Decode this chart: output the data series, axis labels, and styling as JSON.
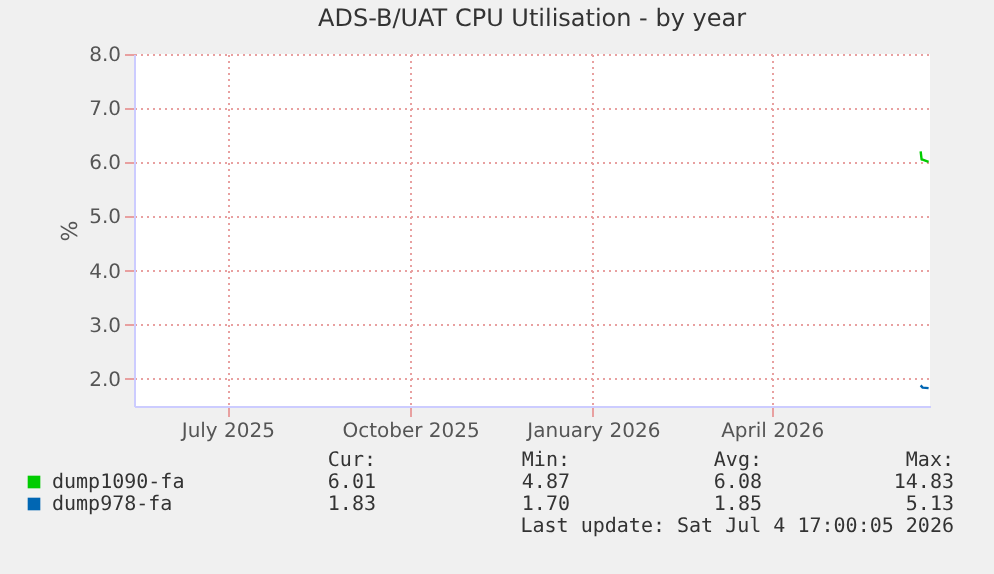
{
  "chart_data": {
    "type": "line",
    "title": "ADS-B/UAT CPU Utilisation - by year",
    "ylabel": "%",
    "series": [
      {
        "name": "dump1090-fa",
        "color": "#00cc00",
        "x": [
          "2026-06-30",
          "2026-06-30T12:00",
          "2026-07-01",
          "2026-07-04"
        ],
        "values": [
          6.2,
          6.05,
          6.05,
          6.01
        ]
      },
      {
        "name": "dump978-fa",
        "color": "#0066b3",
        "x": [
          "2026-06-30",
          "2026-07-01",
          "2026-07-04"
        ],
        "values": [
          1.88,
          1.84,
          1.83
        ]
      }
    ],
    "xlim": [
      "2025-05-30",
      "2026-07-04T17:00"
    ],
    "xticks": [
      {
        "value": "2025-07-16",
        "label": "July 2025"
      },
      {
        "value": "2025-10-16",
        "label": "October 2025"
      },
      {
        "value": "2026-01-16",
        "label": "January 2026"
      },
      {
        "value": "2026-04-16",
        "label": "April 2026"
      }
    ],
    "ylim": [
      1.5,
      8.0
    ],
    "yticks": [
      {
        "value": 2,
        "label": "2.0"
      },
      {
        "value": 3,
        "label": "3.0"
      },
      {
        "value": 4,
        "label": "4.0"
      },
      {
        "value": 5,
        "label": "5.0"
      },
      {
        "value": 6,
        "label": "6.0"
      },
      {
        "value": 7,
        "label": "7.0"
      },
      {
        "value": 8,
        "label": "8.0"
      }
    ],
    "grid": true,
    "legend": "bottom",
    "marker": "none",
    "line_style": "solid",
    "annotations": [
      "Cur:",
      "Min:",
      "Avg:",
      "Max:",
      "6.01",
      "4.87",
      "6.08",
      "14.83",
      "1.83",
      "1.70",
      "1.85",
      "5.13",
      "Last update: Sat Jul  4 17:00:05 2026"
    ]
  }
}
